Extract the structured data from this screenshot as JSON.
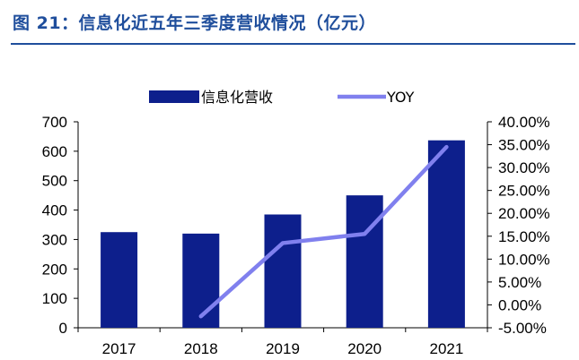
{
  "figure": {
    "title": "图 21：信息化近五年三季度营收情况（亿元）"
  },
  "colors": {
    "bar": "#0d1f8c",
    "line": "#8080ee",
    "title": "#1f4e9c"
  },
  "chart_data": {
    "type": "bar",
    "title": "",
    "categories": [
      "2017",
      "2018",
      "2019",
      "2020",
      "2021"
    ],
    "series": [
      {
        "name": "信息化营收",
        "type": "bar",
        "axis": "left",
        "values": [
          325,
          320,
          385,
          450,
          637
        ]
      },
      {
        "name": "YOY",
        "type": "line",
        "axis": "right",
        "values": [
          null,
          -2.5,
          13.5,
          15.5,
          34.5
        ]
      }
    ],
    "y_left": {
      "min": 0,
      "max": 700,
      "ticks": [
        "0",
        "100",
        "200",
        "300",
        "400",
        "500",
        "600",
        "700"
      ]
    },
    "y_right": {
      "min": -5,
      "max": 40,
      "ticks": [
        "-5.00%",
        "0.00%",
        "5.00%",
        "10.00%",
        "15.00%",
        "20.00%",
        "25.00%",
        "30.00%",
        "35.00%",
        "40.00%"
      ]
    },
    "legend": {
      "position": "top"
    },
    "grid": false
  }
}
